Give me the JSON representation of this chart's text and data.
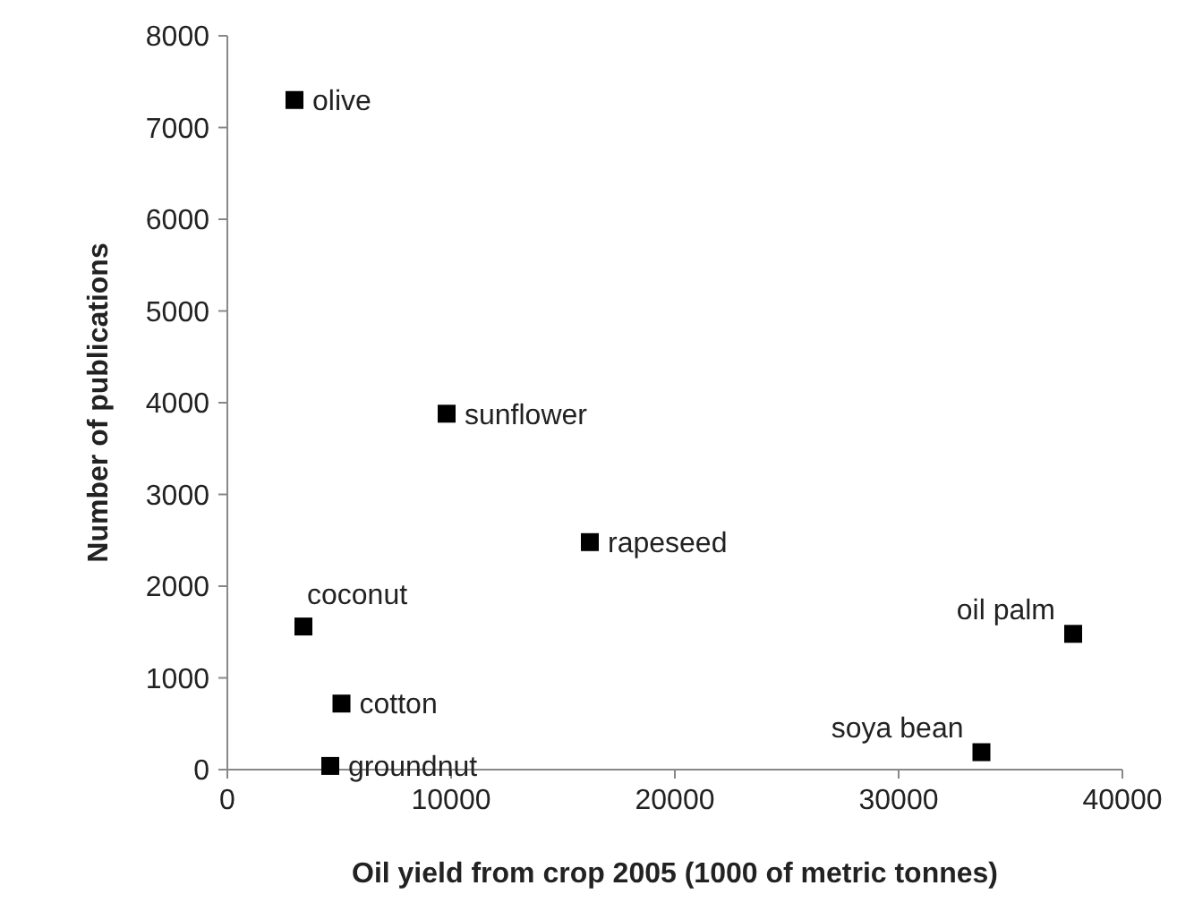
{
  "chart_data": {
    "type": "scatter",
    "xlabel": "Oil yield from crop 2005 (1000 of metric tonnes)",
    "ylabel": "Number of publications",
    "x": [
      3000,
      9800,
      16200,
      37800,
      33700,
      3400,
      5100,
      4600
    ],
    "series": [
      {
        "color": "#000000",
        "values": [
          7300,
          3880,
          2480,
          1480,
          190,
          1560,
          720,
          40
        ]
      }
    ],
    "xlim": [
      0,
      40000
    ],
    "xticks": [
      0,
      10000,
      20000,
      30000,
      40000
    ],
    "ylim": [
      0,
      8000
    ],
    "yticks": [
      0,
      1000,
      2000,
      3000,
      4000,
      5000,
      6000,
      7000,
      8000
    ],
    "marker": "square",
    "grid": false,
    "annotations": [
      {
        "text": "olive",
        "x": 3000,
        "y": 7300
      },
      {
        "text": "sunflower",
        "x": 9800,
        "y": 3880
      },
      {
        "text": "rapeseed",
        "x": 16200,
        "y": 2480
      },
      {
        "text": "oil palm",
        "x": 37800,
        "y": 1480
      },
      {
        "text": "soya bean",
        "x": 33700,
        "y": 190
      },
      {
        "text": "coconut",
        "x": 3400,
        "y": 1560
      },
      {
        "text": "cotton",
        "x": 5100,
        "y": 720
      },
      {
        "text": "groundnut",
        "x": 4600,
        "y": 40
      }
    ]
  }
}
